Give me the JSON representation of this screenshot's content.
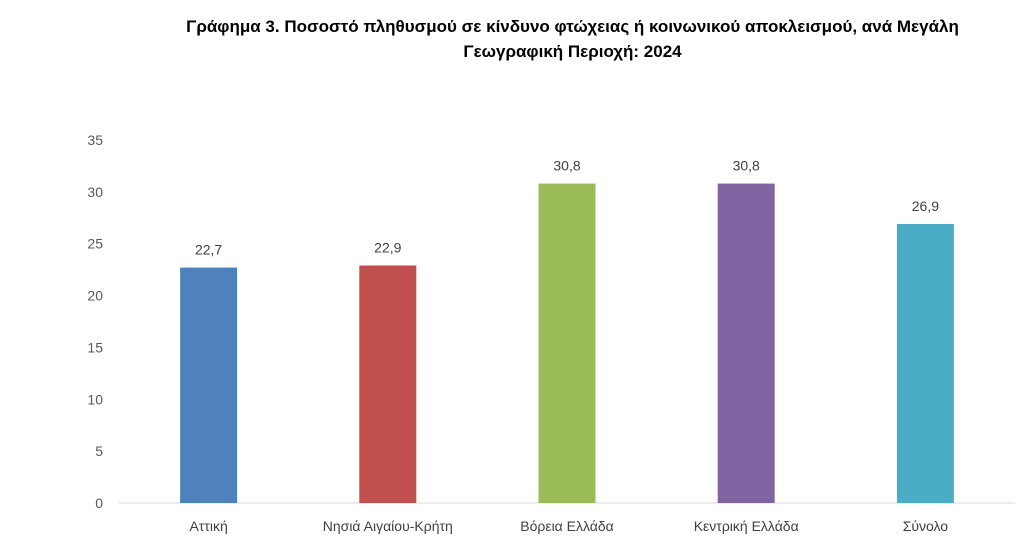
{
  "chart_data": {
    "type": "bar",
    "title": "Γράφημα 3. Ποσοστό πληθυσμού σε κίνδυνο φτώχειας ή κοινωνικού αποκλεισμού, ανά  Μεγάλη Γεωγραφική Περιοχή: 2024",
    "categories": [
      "Αττική",
      "Νησιά Αιγαίου-Κρήτη",
      "Βόρεια Ελλάδα",
      "Κεντρική Ελλάδα",
      "Σύνολο"
    ],
    "values": [
      22.7,
      22.9,
      30.8,
      30.8,
      26.9
    ],
    "data_labels": [
      "22,7",
      "22,9",
      "30,8",
      "30,8",
      "26,9"
    ],
    "colors": [
      "#4f81bd",
      "#c0504d",
      "#9bbb59",
      "#8064a2",
      "#4bacc6"
    ],
    "ylim": [
      0,
      35
    ],
    "yticks": [
      0,
      5,
      10,
      15,
      20,
      25,
      30,
      35
    ],
    "grid": false,
    "legend": "none"
  }
}
